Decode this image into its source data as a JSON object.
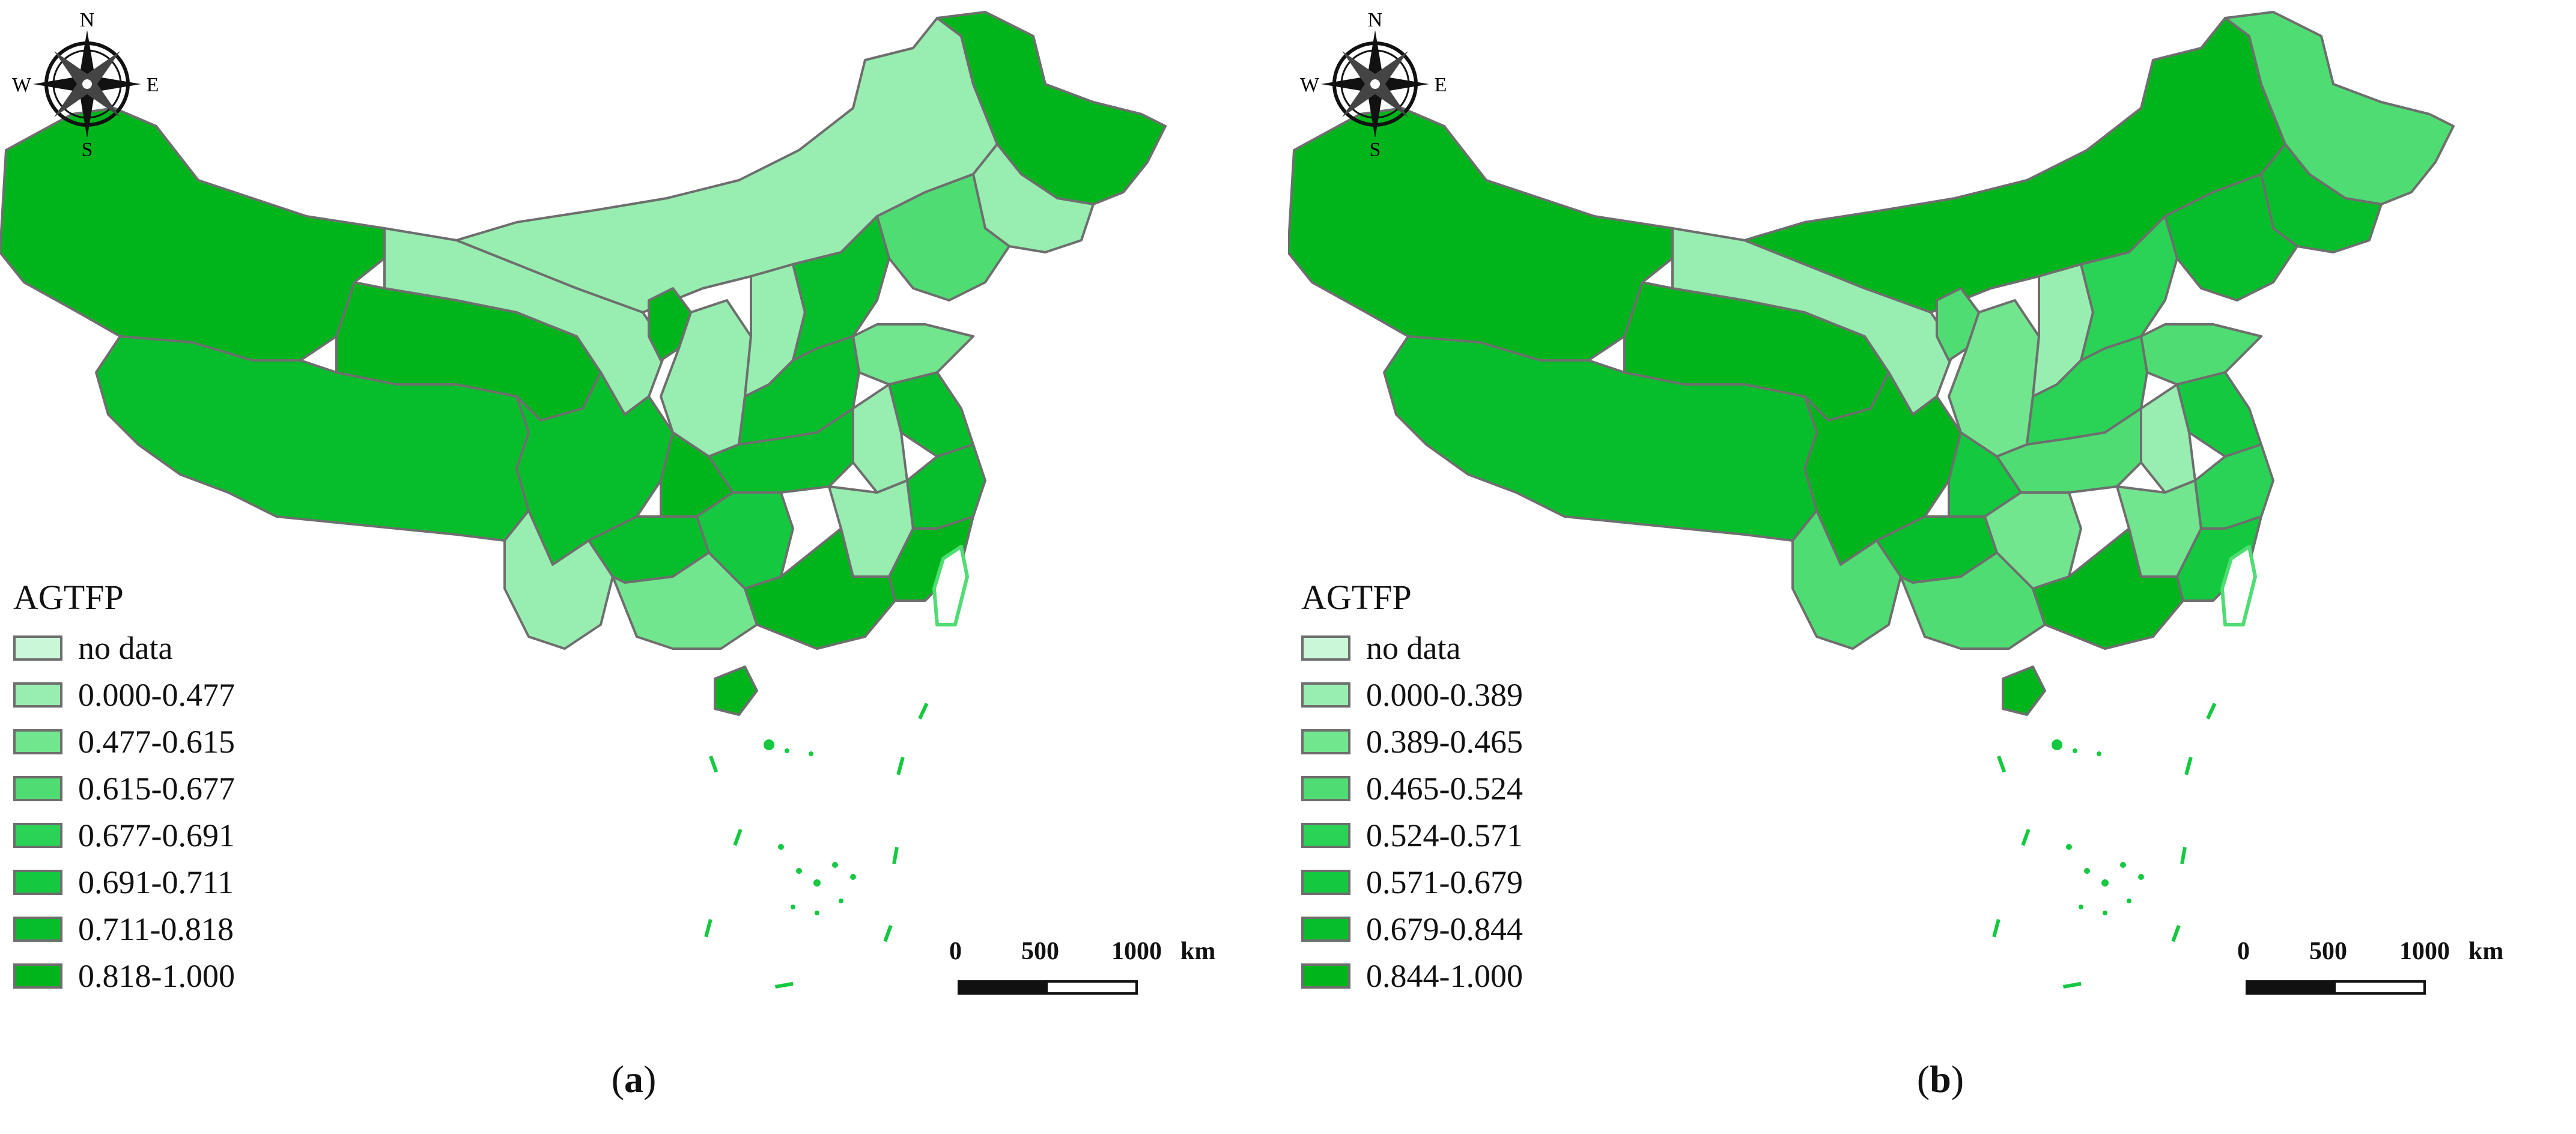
{
  "colors": {
    "no_data": "#c9f7d8",
    "border": "#6e6e6e",
    "classes": [
      "#c9f7d8",
      "#97eeb0",
      "#72e58f",
      "#4fdc72",
      "#2ad356",
      "#14c93f",
      "#06be2b",
      "#00b51c"
    ]
  },
  "compass": {
    "n": "N",
    "s": "S",
    "w": "W",
    "e": "E",
    "icon": "compass-rose-icon"
  },
  "scalebar": {
    "labels": [
      "0",
      "500",
      "1000"
    ],
    "unit": "km"
  },
  "panels": [
    {
      "id": "a",
      "caption": {
        "open": "(",
        "letter": "a",
        "close": ")"
      },
      "legend": {
        "title": "AGTFP",
        "items": [
          {
            "label": "no data"
          },
          {
            "label": "0.000-0.477"
          },
          {
            "label": "0.477-0.615"
          },
          {
            "label": "0.615-0.677"
          },
          {
            "label": "0.677-0.691"
          },
          {
            "label": "0.691-0.711"
          },
          {
            "label": "0.711-0.818"
          },
          {
            "label": "0.818-1.000"
          }
        ]
      }
    },
    {
      "id": "b",
      "caption": {
        "open": "(",
        "letter": "b",
        "close": ")"
      },
      "legend": {
        "title": "AGTFP",
        "items": [
          {
            "label": "no data"
          },
          {
            "label": "0.000-0.389"
          },
          {
            "label": "0.389-0.465"
          },
          {
            "label": "0.465-0.524"
          },
          {
            "label": "0.524-0.571"
          },
          {
            "label": "0.571-0.679"
          },
          {
            "label": "0.679-0.844"
          },
          {
            "label": "0.844-1.000"
          }
        ]
      }
    }
  ]
}
